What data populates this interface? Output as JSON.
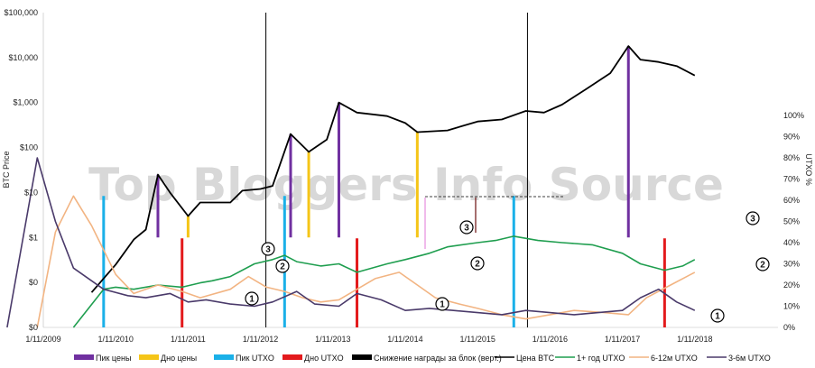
{
  "watermark": "Top Bloggers Info Source",
  "chart_data": {
    "type": "line",
    "left_axis": {
      "title": "BTC Price",
      "scale": "log",
      "ticks": [
        "$0",
        "$0",
        "$1",
        "$10",
        "$100",
        "$1,000",
        "$10,000",
        "$100,000"
      ]
    },
    "right_axis": {
      "title": "UTXO %",
      "ticks": [
        "0%",
        "10%",
        "20%",
        "30%",
        "40%",
        "50%",
        "60%",
        "70%",
        "80%",
        "90%",
        "100%"
      ]
    },
    "x_ticks": [
      "1/11/2009",
      "1/11/2010",
      "1/11/2011",
      "1/11/2012",
      "1/11/2013",
      "1/11/2014",
      "1/11/2015",
      "1/11/2016",
      "1/11/2017",
      "1/11/2018"
    ],
    "halvings": [
      "2012-11-28",
      "2016-07-09"
    ],
    "series": [
      {
        "name": "Цена BTC",
        "color": "#000000",
        "axis": "left",
        "points": [
          [
            "2010-07",
            0.06
          ],
          [
            "2010-11",
            0.25
          ],
          [
            "2011-02",
            0.9
          ],
          [
            "2011-04",
            1.5
          ],
          [
            "2011-06",
            25
          ],
          [
            "2011-08",
            10
          ],
          [
            "2011-11",
            3
          ],
          [
            "2012-01",
            6
          ],
          [
            "2012-06",
            6
          ],
          [
            "2012-08",
            11
          ],
          [
            "2012-11",
            12
          ],
          [
            "2013-01",
            14
          ],
          [
            "2013-04",
            200
          ],
          [
            "2013-07",
            80
          ],
          [
            "2013-10",
            150
          ],
          [
            "2013-12",
            1000
          ],
          [
            "2014-03",
            600
          ],
          [
            "2014-08",
            500
          ],
          [
            "2014-11",
            350
          ],
          [
            "2015-01",
            220
          ],
          [
            "2015-06",
            240
          ],
          [
            "2015-11",
            380
          ],
          [
            "2016-03",
            420
          ],
          [
            "2016-07",
            650
          ],
          [
            "2016-10",
            600
          ],
          [
            "2017-01",
            900
          ],
          [
            "2017-05",
            2000
          ],
          [
            "2017-09",
            4500
          ],
          [
            "2017-12",
            18000
          ],
          [
            "2018-02",
            9000
          ],
          [
            "2018-05",
            8000
          ],
          [
            "2018-08",
            6500
          ],
          [
            "2018-11",
            4000
          ]
        ]
      },
      {
        "name": "1+ год UTXO",
        "color": "#1f9e4f",
        "axis": "right",
        "points": [
          [
            "2010-04",
            0
          ],
          [
            "2010-09",
            18
          ],
          [
            "2010-11",
            19
          ],
          [
            "2011-02",
            18
          ],
          [
            "2011-06",
            20
          ],
          [
            "2011-10",
            19
          ],
          [
            "2012-01",
            21
          ],
          [
            "2012-03",
            22
          ],
          [
            "2012-06",
            24
          ],
          [
            "2012-10",
            30
          ],
          [
            "2013-01",
            32
          ],
          [
            "2013-03",
            34
          ],
          [
            "2013-05",
            31
          ],
          [
            "2013-09",
            29
          ],
          [
            "2013-12",
            30
          ],
          [
            "2014-03",
            26
          ],
          [
            "2014-08",
            30
          ],
          [
            "2014-11",
            32
          ],
          [
            "2015-03",
            35
          ],
          [
            "2015-06",
            38
          ],
          [
            "2015-11",
            40
          ],
          [
            "2016-02",
            41
          ],
          [
            "2016-05",
            43
          ],
          [
            "2016-09",
            41
          ],
          [
            "2017-01",
            40
          ],
          [
            "2017-06",
            39
          ],
          [
            "2017-11",
            35
          ],
          [
            "2018-02",
            30
          ],
          [
            "2018-06",
            27
          ],
          [
            "2018-09",
            29
          ],
          [
            "2018-11",
            32
          ]
        ]
      },
      {
        "name": "6-12м UTXO",
        "color": "#f2b482",
        "axis": "right",
        "points": [
          [
            "2009-10",
            0
          ],
          [
            "2010-01",
            45
          ],
          [
            "2010-04",
            62
          ],
          [
            "2010-07",
            48
          ],
          [
            "2010-11",
            25
          ],
          [
            "2011-02",
            16
          ],
          [
            "2011-06",
            20
          ],
          [
            "2011-10",
            17
          ],
          [
            "2012-01",
            14
          ],
          [
            "2012-06",
            18
          ],
          [
            "2012-09",
            24
          ],
          [
            "2012-12",
            19
          ],
          [
            "2013-03",
            17
          ],
          [
            "2013-06",
            14
          ],
          [
            "2013-09",
            12
          ],
          [
            "2013-12",
            13
          ],
          [
            "2014-03",
            18
          ],
          [
            "2014-06",
            23
          ],
          [
            "2014-10",
            26
          ],
          [
            "2015-01",
            20
          ],
          [
            "2015-04",
            14
          ],
          [
            "2015-08",
            11
          ],
          [
            "2015-11",
            9
          ],
          [
            "2016-03",
            6
          ],
          [
            "2016-07",
            4
          ],
          [
            "2016-11",
            6
          ],
          [
            "2017-03",
            8
          ],
          [
            "2017-08",
            7
          ],
          [
            "2017-12",
            6
          ],
          [
            "2018-03",
            14
          ],
          [
            "2018-07",
            20
          ],
          [
            "2018-11",
            26
          ]
        ]
      },
      {
        "name": "3-6м UTXO",
        "color": "#4a3a6a",
        "axis": "right",
        "points": [
          [
            "2009-05",
            0
          ],
          [
            "2009-10",
            80
          ],
          [
            "2010-01",
            50
          ],
          [
            "2010-04",
            28
          ],
          [
            "2010-09",
            18
          ],
          [
            "2011-01",
            15
          ],
          [
            "2011-04",
            14
          ],
          [
            "2011-08",
            16
          ],
          [
            "2011-11",
            12
          ],
          [
            "2012-02",
            13
          ],
          [
            "2012-06",
            11
          ],
          [
            "2012-10",
            10
          ],
          [
            "2013-01",
            12
          ],
          [
            "2013-05",
            17
          ],
          [
            "2013-08",
            11
          ],
          [
            "2013-12",
            10
          ],
          [
            "2014-03",
            16
          ],
          [
            "2014-07",
            13
          ],
          [
            "2014-11",
            8
          ],
          [
            "2015-03",
            9
          ],
          [
            "2015-07",
            8
          ],
          [
            "2015-11",
            7
          ],
          [
            "2016-03",
            6
          ],
          [
            "2016-07",
            8
          ],
          [
            "2016-11",
            7
          ],
          [
            "2017-03",
            6
          ],
          [
            "2017-07",
            7
          ],
          [
            "2017-11",
            8
          ],
          [
            "2018-02",
            14
          ],
          [
            "2018-05",
            18
          ],
          [
            "2018-08",
            12
          ],
          [
            "2018-11",
            8
          ]
        ]
      }
    ],
    "markers": [
      {
        "type": "Пик цены",
        "date": "2011-06",
        "color": "#7030a0"
      },
      {
        "type": "Пик цены",
        "date": "2013-04",
        "color": "#7030a0"
      },
      {
        "type": "Пик цены",
        "date": "2013-12",
        "color": "#7030a0"
      },
      {
        "type": "Пик цены",
        "date": "2017-12",
        "color": "#7030a0"
      },
      {
        "type": "Дно цены",
        "date": "2011-11",
        "color": "#f5c518"
      },
      {
        "type": "Дно цены",
        "date": "2013-07",
        "color": "#f5c518"
      },
      {
        "type": "Дно цены",
        "date": "2015-01",
        "color": "#f5c518"
      },
      {
        "type": "Пик UTXO",
        "date": "2010-09",
        "color": "#1ab0e8"
      },
      {
        "type": "Пик UTXO",
        "date": "2013-03",
        "color": "#1ab0e8"
      },
      {
        "type": "Пик UTXO",
        "date": "2016-05",
        "color": "#1ab0e8"
      },
      {
        "type": "Дно UTXO",
        "date": "2011-10",
        "color": "#e31a1c"
      },
      {
        "type": "Дно UTXO",
        "date": "2014-03",
        "color": "#e31a1c"
      },
      {
        "type": "Дно UTXO",
        "date": "2018-06",
        "color": "#e31a1c"
      }
    ],
    "annotations": [
      "1",
      "2",
      "3",
      "1",
      "2",
      "3",
      "1",
      "2",
      "3"
    ],
    "legend": [
      "Пик цены",
      "Дно цены",
      "Пик UTXO",
      "Дно UTXO",
      "Снижение награды за блок (верт.)",
      "Цена BTC",
      "1+ год UTXO",
      "6-12м UTXO",
      "3-6м UTXO"
    ]
  }
}
